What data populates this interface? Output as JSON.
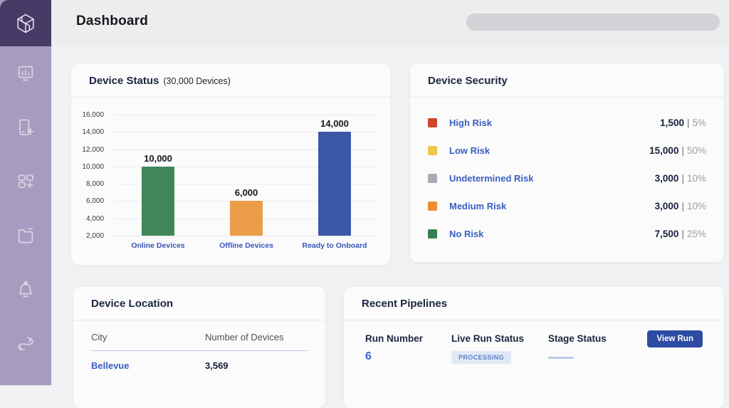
{
  "app": {
    "title": "Dashboard"
  },
  "header": {
    "search_pill_value": ""
  },
  "sidebar": {
    "icons": [
      "analytics-monitor-icon",
      "device-add-icon",
      "grid-add-icon",
      "folder-remove-icon",
      "bell-icon",
      "sync-icon"
    ],
    "logo": "hex-cube-logo",
    "colors": {
      "logo_block": "#473a66",
      "rail": "#a59cbf"
    }
  },
  "device_status": {
    "title": "Device Status",
    "subtitle": "(30,000 Devices)"
  },
  "chart_data": {
    "type": "bar",
    "title": "Device Status (30,000 Devices)",
    "categories": [
      "Online Devices",
      "Offline Devices",
      "Ready to Onboard"
    ],
    "values": [
      10000,
      6000,
      14000
    ],
    "data_labels": [
      "10,000",
      "6,000",
      "14,000"
    ],
    "bar_colors": [
      "#41865a",
      "#eb9d49",
      "#3a58a7"
    ],
    "xlabel": "",
    "ylabel": "",
    "ylim": [
      2000,
      16000
    ],
    "ytick_labels": [
      "16,000",
      "14,000",
      "12,000",
      "10,000",
      "8,000",
      "6,000",
      "4,000",
      "2,000"
    ],
    "grid": true,
    "legend": "none",
    "category_label_color": "#3556b5"
  },
  "device_security": {
    "title": "Device Security",
    "items": [
      {
        "label": "High Risk",
        "color": "#ce4627",
        "value": "1,500",
        "percent": "5%"
      },
      {
        "label": "Low Risk",
        "color": "#eec84a",
        "value": "15,000",
        "percent": "50%"
      },
      {
        "label": "Undetermined Risk",
        "color": "#a9abb4",
        "value": "3,000",
        "percent": "10%"
      },
      {
        "label": "Medium Risk",
        "color": "#ec8e2f",
        "value": "3,000",
        "percent": "10%"
      },
      {
        "label": "No Risk",
        "color": "#3a7f51",
        "value": "7,500",
        "percent": "25%"
      }
    ]
  },
  "device_location": {
    "title": "Device Location",
    "columns": [
      "City",
      "Number of Devices"
    ],
    "rows": [
      {
        "city": "Bellevue",
        "devices": "3,569"
      }
    ]
  },
  "recent_pipelines": {
    "title": "Recent Pipelines",
    "columns": [
      "Run Number",
      "Live Run Status",
      "Stage Status"
    ],
    "run_number": "6",
    "status_badge": "PROCESSING",
    "view_run_label": "View Run"
  },
  "colors": {
    "accent_blue": "#3a5ec1",
    "button_blue": "#2e4ba4",
    "badge_bg": "#dfe9f6",
    "badge_text": "#5d80c6",
    "header_bg": "#ededee",
    "content_bg": "#f1f0f2",
    "card_bg": "#fbfbfc"
  }
}
